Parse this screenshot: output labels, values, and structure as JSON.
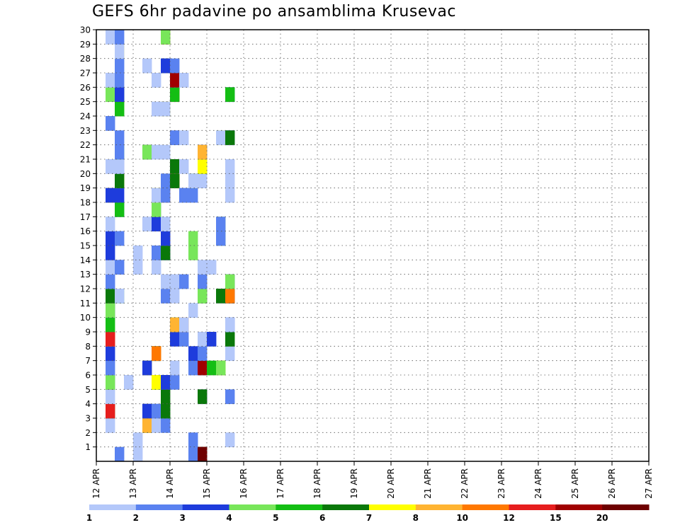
{
  "chart_data": {
    "type": "heatmap",
    "title": "GEFS 6hr padavine po ansamblima Krusevac",
    "xlabel": "",
    "ylabel": "",
    "x_ticks": [
      "12 APR",
      "13 APR",
      "14 APR",
      "15 APR",
      "16 APR",
      "17 APR",
      "18 APR",
      "19 APR",
      "20 APR",
      "21 APR",
      "22 APR",
      "23 APR",
      "24 APR",
      "25 APR",
      "26 APR",
      "27 APR"
    ],
    "y_ticks": [
      1,
      2,
      3,
      4,
      5,
      6,
      7,
      8,
      9,
      10,
      11,
      12,
      13,
      14,
      15,
      16,
      17,
      18,
      19,
      20,
      21,
      22,
      23,
      24,
      25,
      26,
      27,
      28,
      29,
      30
    ],
    "xlim": [
      "12 APR 00Z",
      "27 APR 00Z"
    ],
    "ylim": [
      0,
      30
    ],
    "grid": true,
    "time_step_hours": 6,
    "colorbar": {
      "boundaries": [
        1,
        2,
        3,
        4,
        5,
        6,
        7,
        8,
        10,
        12,
        15,
        20
      ],
      "labels": [
        "1",
        "2",
        "3",
        "4",
        "5",
        "6",
        "7",
        "8",
        "10",
        "12",
        "15",
        "20"
      ],
      "colors": [
        "#b4c8fa",
        "#5a82f0",
        "#1e3cdc",
        "#78e65a",
        "#14be14",
        "#0a780a",
        "#ffff00",
        "#ffb432",
        "#ff7800",
        "#e61e1e",
        "#a00000",
        "#6e0000"
      ]
    },
    "members": [
      {
        "member": 1,
        "cells": [
          [
            2,
            1
          ],
          [
            4,
            0
          ],
          [
            10,
            1
          ],
          [
            11,
            5
          ],
          [
            11,
            7
          ],
          [
            11,
            8
          ],
          [
            11,
            10
          ],
          [
            11,
            11
          ]
        ]
      },
      {
        "member": 2,
        "cells": [
          [
            4,
            0
          ],
          [
            10,
            0
          ],
          [
            10,
            1
          ],
          [
            14,
            0
          ]
        ]
      },
      {
        "member": 3,
        "cells": [
          [
            1,
            0
          ],
          [
            5,
            5
          ],
          [
            5,
            7
          ],
          [
            6,
            0
          ],
          [
            7,
            1
          ]
        ]
      },
      {
        "member": 4,
        "cells": [
          [
            1,
            4
          ],
          [
            1,
            9
          ],
          [
            5,
            2
          ],
          [
            6,
            1
          ],
          [
            7,
            0
          ],
          [
            7,
            1
          ],
          [
            7,
            2
          ],
          [
            7,
            4
          ],
          [
            7,
            5
          ]
        ]
      },
      {
        "member": 5,
        "cells": [
          [
            1,
            0
          ],
          [
            7,
            5
          ],
          [
            11,
            1
          ],
          [
            11,
            5
          ],
          [
            14,
            1
          ]
        ]
      },
      {
        "member": 6,
        "cells": [
          [
            1,
            8
          ],
          [
            1,
            1
          ],
          [
            1,
            3
          ],
          [
            3,
            0
          ],
          [
            6,
            1
          ],
          [
            6,
            4
          ],
          [
            6,
            6
          ],
          [
            7,
            1
          ],
          [
            7,
            2
          ],
          [
            8,
            1
          ]
        ]
      },
      {
        "member": 7,
        "cells": [
          [
            1,
            1
          ],
          [
            5,
            0
          ],
          [
            5,
            1
          ],
          [
            5,
            5
          ],
          [
            5,
            7
          ],
          [
            5,
            6
          ],
          [
            5,
            2
          ],
          [
            8,
            0
          ],
          [
            10,
            1
          ],
          [
            11,
            2
          ],
          [
            11,
            10
          ],
          [
            12,
            4
          ],
          [
            13,
            0
          ],
          [
            13,
            5
          ],
          [
            13,
            6
          ],
          [
            13,
            3
          ]
        ]
      },
      {
        "member": 8,
        "cells": [
          [
            1,
            0
          ],
          [
            1,
            2
          ],
          [
            6,
            0
          ],
          [
            6,
            1
          ],
          [
            6,
            4
          ],
          [
            6,
            5
          ],
          [
            6,
            7
          ],
          [
            6,
            8
          ],
          [
            10,
            0
          ],
          [
            10,
            2
          ],
          [
            11,
            1
          ],
          [
            14,
            0
          ]
        ]
      },
      {
        "member": 9,
        "cells": [
          [
            1,
            0
          ],
          [
            1,
            8
          ],
          [
            1,
            9
          ],
          [
            8,
            2
          ],
          [
            9,
            1
          ],
          [
            11,
            1
          ],
          [
            11,
            0
          ],
          [
            12,
            2
          ],
          [
            14,
            0
          ],
          [
            14,
            3
          ],
          [
            14,
            5
          ]
        ]
      },
      {
        "member": 10,
        "cells": [
          [
            1,
            4
          ],
          [
            8,
            4
          ],
          [
            8,
            6
          ],
          [
            8,
            3
          ],
          [
            8,
            7
          ],
          [
            9,
            8
          ],
          [
            9,
            0
          ],
          [
            14,
            2
          ],
          [
            14,
            1
          ],
          [
            14,
            0
          ]
        ]
      },
      {
        "member": 11,
        "cells": [
          [
            1,
            1
          ],
          [
            1,
            2
          ],
          [
            1,
            3
          ],
          [
            10,
            0
          ]
        ]
      },
      {
        "member": 12,
        "cells": [
          [
            1,
            5
          ],
          [
            2,
            1
          ],
          [
            2,
            3
          ],
          [
            2,
            0
          ],
          [
            7,
            0
          ],
          [
            7,
            1
          ],
          [
            8,
            0
          ],
          [
            11,
            4
          ],
          [
            11,
            3
          ],
          [
            13,
            0
          ],
          [
            13,
            5
          ],
          [
            14,
            5
          ],
          [
            14,
            2
          ],
          [
            14,
            8
          ]
        ]
      },
      {
        "member": 13,
        "cells": [
          [
            1,
            0
          ],
          [
            1,
            1
          ],
          [
            7,
            0
          ],
          [
            8,
            0
          ],
          [
            9,
            1
          ],
          [
            11,
            0
          ],
          [
            11,
            1
          ],
          [
            14,
            2
          ],
          [
            14,
            3
          ]
        ]
      },
      {
        "member": 14,
        "cells": [
          [
            1,
            2
          ],
          [
            1,
            0
          ],
          [
            2,
            0
          ],
          [
            2,
            1
          ],
          [
            4,
            0
          ],
          [
            6,
            0
          ],
          [
            11,
            0
          ],
          [
            12,
            0
          ]
        ]
      },
      {
        "member": 15,
        "cells": [
          [
            1,
            2
          ],
          [
            4,
            0
          ],
          [
            6,
            1
          ],
          [
            7,
            1
          ],
          [
            7,
            2
          ],
          [
            7,
            5
          ],
          [
            10,
            3
          ]
        ]
      },
      {
        "member": 16,
        "cells": [
          [
            1,
            2
          ],
          [
            2,
            1
          ],
          [
            7,
            11
          ],
          [
            7,
            1
          ],
          [
            7,
            2
          ],
          [
            10,
            3
          ],
          [
            13,
            3
          ],
          [
            13,
            1
          ]
        ]
      },
      {
        "member": 17,
        "cells": [
          [
            1,
            0
          ],
          [
            5,
            0
          ],
          [
            6,
            2
          ],
          [
            7,
            0
          ],
          [
            13,
            3
          ],
          [
            13,
            1
          ]
        ]
      },
      {
        "member": 18,
        "cells": [
          [
            2,
            1
          ],
          [
            2,
            4
          ],
          [
            6,
            1
          ],
          [
            6,
            3
          ]
        ]
      },
      {
        "member": 19,
        "cells": [
          [
            1,
            6
          ],
          [
            1,
            2
          ],
          [
            2,
            2
          ],
          [
            6,
            0
          ],
          [
            6,
            6
          ],
          [
            6,
            0
          ],
          [
            7,
            9
          ],
          [
            7,
            8
          ],
          [
            7,
            1
          ],
          [
            9,
            0
          ],
          [
            9,
            1
          ],
          [
            10,
            1
          ],
          [
            14,
            0
          ]
        ]
      },
      {
        "member": 20,
        "cells": [
          [
            2,
            6
          ],
          [
            2,
            5
          ],
          [
            7,
            1
          ],
          [
            8,
            0
          ],
          [
            8,
            8
          ],
          [
            8,
            5
          ],
          [
            10,
            4
          ],
          [
            10,
            0
          ],
          [
            11,
            0
          ],
          [
            14,
            0
          ]
        ]
      },
      {
        "member": 21,
        "cells": [
          [
            1,
            0
          ],
          [
            2,
            1
          ],
          [
            2,
            0
          ],
          [
            8,
            7
          ],
          [
            8,
            5
          ],
          [
            9,
            0
          ],
          [
            11,
            0
          ],
          [
            11,
            1
          ],
          [
            11,
            4
          ],
          [
            11,
            3
          ],
          [
            11,
            6
          ],
          [
            14,
            0
          ]
        ]
      },
      {
        "member": 22,
        "cells": [
          [
            2,
            4
          ],
          [
            2,
            3
          ],
          [
            2,
            1
          ],
          [
            5,
            0
          ],
          [
            5,
            5
          ],
          [
            5,
            3
          ],
          [
            6,
            0
          ],
          [
            7,
            0
          ],
          [
            11,
            2
          ],
          [
            11,
            7
          ]
        ]
      },
      {
        "member": 23,
        "cells": [
          [
            2,
            1
          ],
          [
            8,
            0
          ],
          [
            8,
            1
          ],
          [
            9,
            0
          ],
          [
            13,
            6
          ],
          [
            13,
            0
          ],
          [
            14,
            1
          ],
          [
            14,
            2
          ],
          [
            14,
            0
          ],
          [
            14,
            5
          ]
        ]
      },
      {
        "member": 24,
        "cells": [
          [
            1,
            0
          ],
          [
            1,
            1
          ]
        ]
      },
      {
        "member": 25,
        "cells": [
          [
            2,
            3
          ],
          [
            2,
            4
          ],
          [
            6,
            0
          ],
          [
            7,
            2
          ],
          [
            7,
            6
          ],
          [
            7,
            0
          ]
        ]
      },
      {
        "member": 26,
        "cells": [
          [
            1,
            3
          ],
          [
            2,
            5
          ],
          [
            2,
            2
          ],
          [
            8,
            9
          ],
          [
            8,
            4
          ],
          [
            14,
            0
          ],
          [
            14,
            1
          ],
          [
            14,
            4
          ]
        ]
      },
      {
        "member": 27,
        "cells": [
          [
            1,
            0
          ],
          [
            2,
            1
          ],
          [
            6,
            0
          ],
          [
            8,
            1
          ],
          [
            8,
            10
          ],
          [
            9,
            0
          ]
        ]
      },
      {
        "member": 28,
        "cells": [
          [
            2,
            0
          ],
          [
            2,
            1
          ],
          [
            5,
            0
          ],
          [
            7,
            0
          ],
          [
            7,
            5
          ],
          [
            7,
            1
          ],
          [
            7,
            2
          ],
          [
            8,
            1
          ]
        ]
      },
      {
        "member": 29,
        "cells": [
          [
            2,
            6
          ],
          [
            2,
            0
          ]
        ]
      },
      {
        "member": 30,
        "cells": [
          [
            1,
            0
          ],
          [
            2,
            1
          ],
          [
            7,
            5
          ],
          [
            7,
            8
          ],
          [
            7,
            3
          ]
        ]
      }
    ]
  }
}
